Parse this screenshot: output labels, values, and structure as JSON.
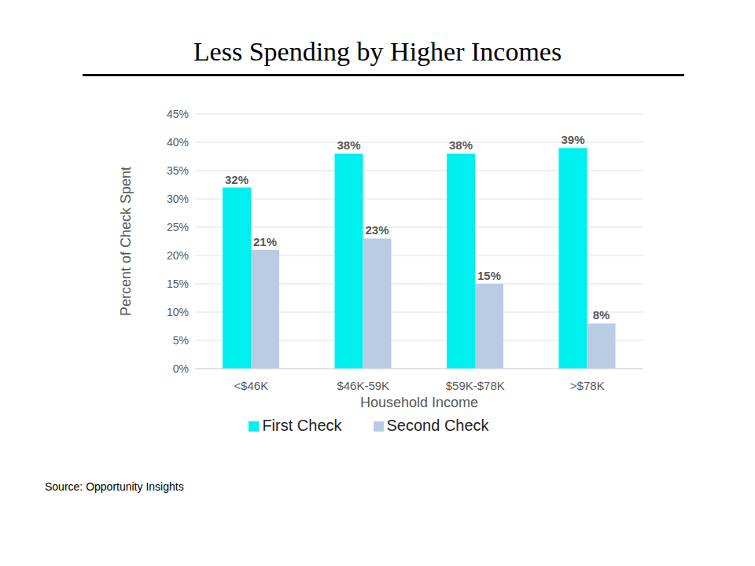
{
  "chart_data": {
    "type": "bar",
    "title": "Less Spending by Higher Incomes",
    "x_label": "Household Income",
    "y_label": "Percent of Check Spent",
    "categories": [
      "<$46K",
      "$46K-59K",
      "$59K-$78K",
      ">$78K"
    ],
    "series": [
      {
        "name": "First Check",
        "color": "#00f0f0",
        "values": [
          32,
          38,
          38,
          39
        ],
        "value_labels": [
          "32%",
          "38%",
          "38%",
          "39%"
        ]
      },
      {
        "name": "Second Check",
        "color": "#b8cce4",
        "values": [
          21,
          23,
          15,
          8
        ],
        "value_labels": [
          "21%",
          "23%",
          "15%",
          "8%"
        ]
      }
    ],
    "ylim": [
      0,
      45
    ],
    "yticks": [
      {
        "value": 0,
        "label": "0%"
      },
      {
        "value": 5,
        "label": "5%"
      },
      {
        "value": 10,
        "label": "10%"
      },
      {
        "value": 15,
        "label": "15%"
      },
      {
        "value": 20,
        "label": "20%"
      },
      {
        "value": 25,
        "label": "25%"
      },
      {
        "value": 30,
        "label": "30%"
      },
      {
        "value": 35,
        "label": "35%"
      },
      {
        "value": 40,
        "label": "40%"
      },
      {
        "value": 45,
        "label": "45%"
      }
    ],
    "grid": true,
    "legend": "bottom",
    "data_labels": true,
    "source": "Source: Opportunity Insights"
  }
}
